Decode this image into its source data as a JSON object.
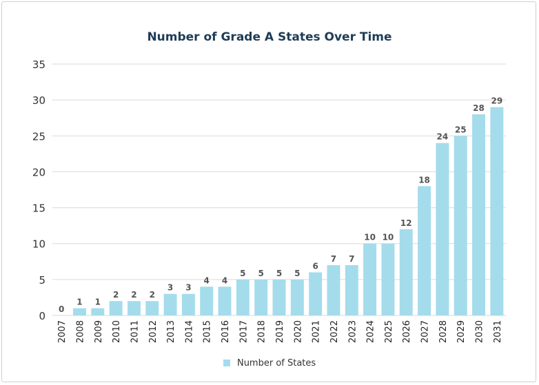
{
  "chart_data": {
    "type": "bar",
    "title": "Number of Grade A States Over Time",
    "categories": [
      "2007",
      "2008",
      "2009",
      "2010",
      "2011",
      "2012",
      "2013",
      "2014",
      "2015",
      "2016",
      "2017",
      "2018",
      "2019",
      "2020",
      "2021",
      "2022",
      "2023",
      "2024",
      "2025",
      "2026",
      "2027",
      "2028",
      "2029",
      "2030",
      "2031"
    ],
    "series": [
      {
        "name": "Number of States",
        "values": [
          0,
          1,
          1,
          2,
          2,
          2,
          3,
          3,
          4,
          4,
          5,
          5,
          5,
          5,
          6,
          7,
          7,
          10,
          10,
          12,
          18,
          24,
          25,
          28,
          29
        ]
      }
    ],
    "yticks": [
      0,
      5,
      10,
      15,
      20,
      25,
      30,
      35
    ],
    "ylim": [
      0,
      35
    ],
    "grid": true,
    "legend_position": "bottom",
    "bar_color": "#a4dcec",
    "label_color": "#555555",
    "grid_color": "#d9d9d9"
  }
}
